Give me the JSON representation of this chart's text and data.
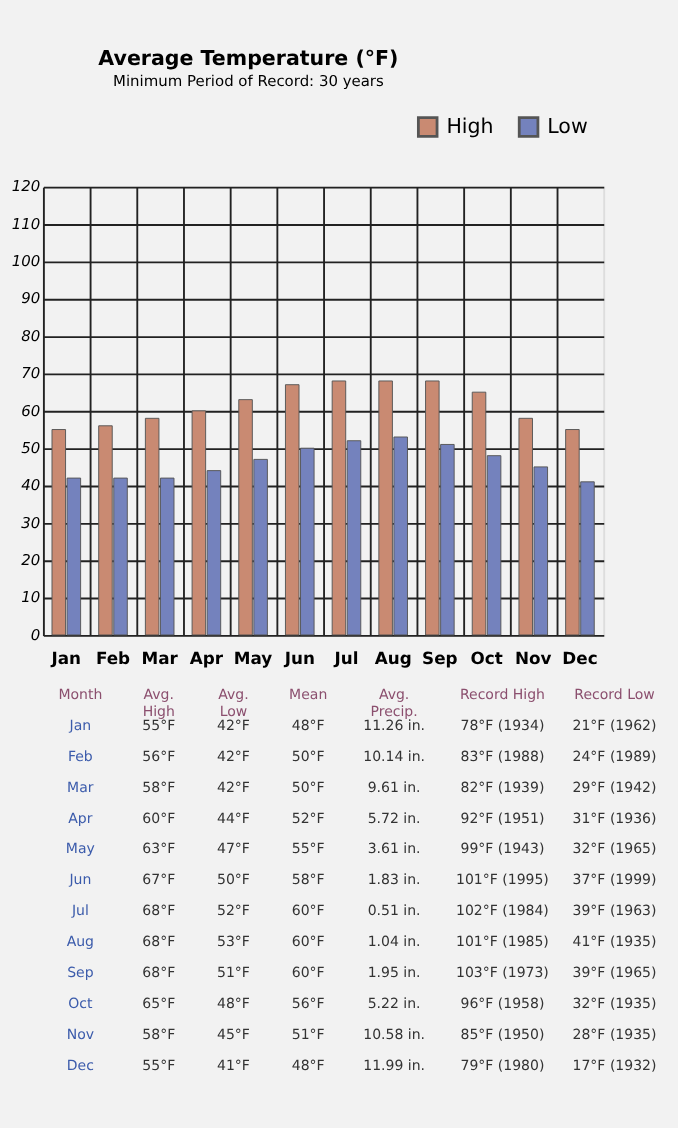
{
  "chart_data": {
    "type": "bar",
    "title": "Average Temperature (°F)",
    "subtitle": "Minimum Period of Record: 30 years",
    "categories": [
      "Jan",
      "Feb",
      "Mar",
      "Apr",
      "May",
      "Jun",
      "Jul",
      "Aug",
      "Sep",
      "Oct",
      "Nov",
      "Dec"
    ],
    "series": [
      {
        "name": "High",
        "color": "#c98a72",
        "values": [
          55,
          56,
          58,
          60,
          63,
          67,
          68,
          68,
          68,
          65,
          58,
          55
        ]
      },
      {
        "name": "Low",
        "color": "#7482bd",
        "values": [
          42,
          42,
          42,
          44,
          47,
          50,
          52,
          53,
          51,
          48,
          45,
          41
        ]
      }
    ],
    "ylim": [
      0,
      120
    ],
    "yticks": [
      0,
      10,
      20,
      30,
      40,
      50,
      60,
      70,
      80,
      90,
      100,
      110,
      120
    ],
    "grid": true,
    "legend": "top right",
    "annotations": [
      "Month",
      "Avg.\nHigh",
      "Avg.\nLow",
      "Mean",
      "Avg.\nPrecip.",
      "Record High",
      "Record Low",
      "55°F",
      "42°F",
      "48°F",
      "11.26 in.",
      "78°F (1934)",
      "21°F (1962)",
      "56°F",
      "42°F",
      "50°F",
      "10.14 in.",
      "83°F (1988)",
      "24°F (1989)",
      "58°F",
      "42°F",
      "50°F",
      "9.61 in.",
      "82°F (1939)",
      "29°F (1942)",
      "60°F",
      "44°F",
      "52°F",
      "5.72 in.",
      "92°F (1951)",
      "31°F (1936)",
      "63°F",
      "47°F",
      "55°F",
      "3.61 in.",
      "99°F (1943)",
      "32°F (1965)",
      "67°F",
      "50°F",
      "58°F",
      "1.83 in.",
      "101°F (1995)",
      "37°F (1999)",
      "68°F",
      "52°F",
      "60°F",
      "0.51 in.",
      "102°F (1984)",
      "39°F (1963)",
      "68°F",
      "53°F",
      "60°F",
      "1.04 in.",
      "101°F (1985)",
      "41°F (1935)",
      "68°F",
      "51°F",
      "60°F",
      "1.95 in.",
      "103°F (1973)",
      "39°F (1965)",
      "65°F",
      "48°F",
      "56°F",
      "5.22 in.",
      "96°F (1958)",
      "32°F (1935)",
      "58°F",
      "45°F",
      "51°F",
      "10.58 in.",
      "85°F (1950)",
      "28°F (1935)",
      "55°F",
      "41°F",
      "48°F",
      "11.99 in.",
      "79°F (1980)",
      "17°F (1932)"
    ]
  }
}
